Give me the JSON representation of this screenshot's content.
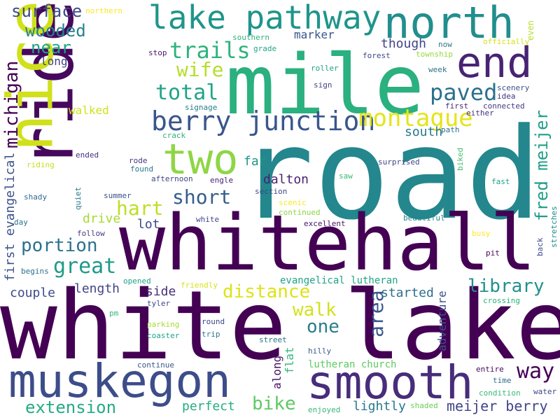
{
  "words": [
    {
      "text": "road",
      "color": "#23878d"
    },
    {
      "text": "white lake",
      "color": "#440154"
    },
    {
      "text": "whitehall",
      "color": "#440154"
    },
    {
      "text": "mile",
      "color": "#2bb07f"
    },
    {
      "text": "ride",
      "color": "#46085c"
    },
    {
      "text": "nice",
      "color": "#d0e11c"
    },
    {
      "text": "muskegon",
      "color": "#3d4d8a"
    },
    {
      "text": "smooth",
      "color": "#472d7b"
    },
    {
      "text": "north",
      "color": "#218f8d"
    },
    {
      "text": "lake pathway",
      "color": "#1f958b"
    },
    {
      "text": "end",
      "color": "#482374"
    },
    {
      "text": "two",
      "color": "#8ed645"
    },
    {
      "text": "berry junction",
      "color": "#39568c"
    },
    {
      "text": "montague",
      "color": "#e5e419"
    },
    {
      "text": "trails",
      "color": "#2eb37c"
    },
    {
      "text": "paved",
      "color": "#2c718e"
    },
    {
      "text": "total",
      "color": "#20a486"
    },
    {
      "text": "wife",
      "color": "#b5de2b"
    },
    {
      "text": "wooded",
      "color": "#26828e"
    },
    {
      "text": "surface",
      "color": "#3e4a89"
    },
    {
      "text": "near",
      "color": "#20a486"
    },
    {
      "text": "michigan",
      "color": "#440154"
    },
    {
      "text": "fred meijer",
      "color": "#1f9e89"
    },
    {
      "text": "short",
      "color": "#365d8d"
    },
    {
      "text": "hart",
      "color": "#bddf26"
    },
    {
      "text": "great",
      "color": "#1f9a8a"
    },
    {
      "text": "portion",
      "color": "#2c728e"
    },
    {
      "text": "first evangelical",
      "color": "#3b528b"
    },
    {
      "text": "distance",
      "color": "#dde318"
    },
    {
      "text": "library",
      "color": "#21918c"
    },
    {
      "text": "way",
      "color": "#440154"
    },
    {
      "text": "area",
      "color": "#39568c"
    },
    {
      "text": "walk",
      "color": "#d2e21b"
    },
    {
      "text": "one",
      "color": "#287d8e"
    },
    {
      "text": "extension",
      "color": "#25ab82"
    },
    {
      "text": "bike",
      "color": "#5ec962"
    },
    {
      "text": "meijer berry",
      "color": "#404688"
    },
    {
      "text": "south",
      "color": "#2a788e"
    },
    {
      "text": "drive",
      "color": "#a8db34"
    },
    {
      "text": "lot",
      "color": "#3e4989"
    },
    {
      "text": "walked",
      "color": "#d0e11c"
    },
    {
      "text": "far",
      "color": "#1f968b"
    },
    {
      "text": "dalton",
      "color": "#481f70"
    },
    {
      "text": "length",
      "color": "#414487"
    },
    {
      "text": "side",
      "color": "#472d7b"
    },
    {
      "text": "couple",
      "color": "#3e4a89"
    },
    {
      "text": "started",
      "color": "#2d708e"
    },
    {
      "text": "though",
      "color": "#414487"
    },
    {
      "text": "marker",
      "color": "#39568c"
    },
    {
      "text": "long",
      "color": "#424086"
    },
    {
      "text": "evangelical lutheran",
      "color": "#20a386"
    },
    {
      "text": "along",
      "color": "#481467"
    },
    {
      "text": "flat",
      "color": "#35b779"
    },
    {
      "text": "lutheran church",
      "color": "#5ec962"
    },
    {
      "text": "adventure",
      "color": "#3b528b"
    },
    {
      "text": "perfect",
      "color": "#26ad81"
    },
    {
      "text": "lightly",
      "color": "#2a788e"
    },
    {
      "text": "northern",
      "color": "#fde725"
    },
    {
      "text": "southern",
      "color": "#2eb37c"
    },
    {
      "text": "grade",
      "color": "#22a884"
    },
    {
      "text": "forest",
      "color": "#3e4989"
    },
    {
      "text": "township",
      "color": "#95d840"
    },
    {
      "text": "now",
      "color": "#29798e"
    },
    {
      "text": "officially",
      "color": "#d5e21a"
    },
    {
      "text": "even",
      "color": "#b5de2b"
    },
    {
      "text": "stop",
      "color": "#481769"
    },
    {
      "text": "roller",
      "color": "#20a386"
    },
    {
      "text": "sign",
      "color": "#414487"
    },
    {
      "text": "week",
      "color": "#2c718e"
    },
    {
      "text": "scenery",
      "color": "#3b528b"
    },
    {
      "text": "idea",
      "color": "#46337f"
    },
    {
      "text": "connected",
      "color": "#453882"
    },
    {
      "text": "first",
      "color": "#482878"
    },
    {
      "text": "either",
      "color": "#46337f"
    },
    {
      "text": "signage",
      "color": "#277f8e"
    },
    {
      "text": "crack",
      "color": "#2eb37c"
    },
    {
      "text": "path",
      "color": "#2e6e8e"
    },
    {
      "text": "ended",
      "color": "#472f7d"
    },
    {
      "text": "riding",
      "color": "#c8e020"
    },
    {
      "text": "rode",
      "color": "#453882"
    },
    {
      "text": "found",
      "color": "#2a788e"
    },
    {
      "text": "afternoon",
      "color": "#414487"
    },
    {
      "text": "engle",
      "color": "#482374"
    },
    {
      "text": "surprised",
      "color": "#404688"
    },
    {
      "text": "saw",
      "color": "#3aba76"
    },
    {
      "text": "biked",
      "color": "#44bf70"
    },
    {
      "text": "fast",
      "color": "#1fa188"
    },
    {
      "text": "shady",
      "color": "#31688e"
    },
    {
      "text": "quiet",
      "color": "#2a788e"
    },
    {
      "text": "summer",
      "color": "#3b528b"
    },
    {
      "text": "section",
      "color": "#3e4989"
    },
    {
      "text": "scenic",
      "color": "#fde725"
    },
    {
      "text": "continued",
      "color": "#8ed645"
    },
    {
      "text": "day",
      "color": "#2c728e"
    },
    {
      "text": "white",
      "color": "#3e4a89"
    },
    {
      "text": "beautiful",
      "color": "#26828e"
    },
    {
      "text": "follow",
      "color": "#453882"
    },
    {
      "text": "excellent",
      "color": "#481769"
    },
    {
      "text": "busy",
      "color": "#fde725"
    },
    {
      "text": "pit",
      "color": "#46085c"
    },
    {
      "text": "back",
      "color": "#3e4989"
    },
    {
      "text": "stretches",
      "color": "#228c8d"
    },
    {
      "text": "begins",
      "color": "#2c728e"
    },
    {
      "text": "opened",
      "color": "#20a386"
    },
    {
      "text": "friendly",
      "color": "#d8e219"
    },
    {
      "text": "tyler",
      "color": "#404688"
    },
    {
      "text": "crossing",
      "color": "#2cb17e"
    },
    {
      "text": "pm",
      "color": "#35b779"
    },
    {
      "text": "parking",
      "color": "#a8db34"
    },
    {
      "text": "round",
      "color": "#3e4a89"
    },
    {
      "text": "coaster",
      "color": "#20a486"
    },
    {
      "text": "trip",
      "color": "#287c8e"
    },
    {
      "text": "street",
      "color": "#2c728e"
    },
    {
      "text": "hilly",
      "color": "#38598c"
    },
    {
      "text": "entire",
      "color": "#46085c"
    },
    {
      "text": "time",
      "color": "#2e6e8e"
    },
    {
      "text": "continue",
      "color": "#39568c"
    },
    {
      "text": "condition",
      "color": "#37b878"
    },
    {
      "text": "water",
      "color": "#3f4788"
    },
    {
      "text": "enjoyed",
      "color": "#35b779"
    },
    {
      "text": "shaded",
      "color": "#6ccd5a"
    }
  ]
}
